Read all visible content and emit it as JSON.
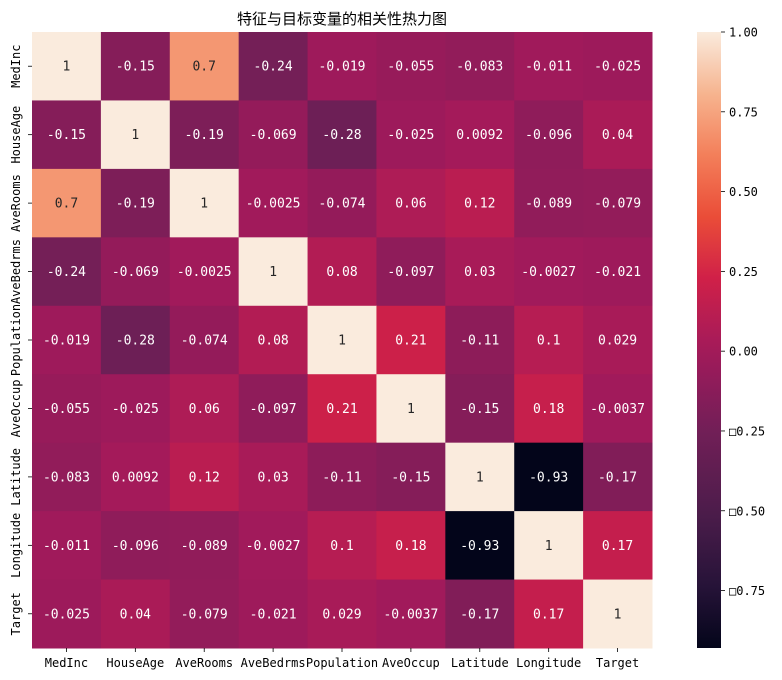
{
  "chart_data": {
    "type": "heatmap",
    "title": "特征与目标变量的相关性热力图",
    "row_labels": [
      "MedInc",
      "HouseAge",
      "AveRooms",
      "AveBedrms",
      "Population",
      "AveOccup",
      "Latitude",
      "Longitude",
      "Target"
    ],
    "col_labels": [
      "MedInc",
      "HouseAge",
      "AveRooms",
      "AveBedrms",
      "Population",
      "AveOccup",
      "Latitude",
      "Longitude",
      "Target"
    ],
    "values": [
      [
        1,
        -0.15,
        0.7,
        -0.24,
        -0.019,
        -0.055,
        -0.083,
        -0.011,
        -0.025
      ],
      [
        -0.15,
        1,
        -0.19,
        -0.069,
        -0.28,
        -0.025,
        0.0092,
        -0.096,
        0.04
      ],
      [
        0.7,
        -0.19,
        1,
        -0.0025,
        -0.074,
        0.06,
        0.12,
        -0.089,
        -0.079
      ],
      [
        -0.24,
        -0.069,
        -0.0025,
        1,
        0.08,
        -0.097,
        0.03,
        -0.0027,
        -0.021
      ],
      [
        -0.019,
        -0.28,
        -0.074,
        0.08,
        1,
        0.21,
        -0.11,
        0.1,
        0.029
      ],
      [
        -0.055,
        -0.025,
        0.06,
        -0.097,
        0.21,
        1,
        -0.15,
        0.18,
        -0.0037
      ],
      [
        -0.083,
        0.0092,
        0.12,
        0.03,
        -0.11,
        -0.15,
        1,
        -0.93,
        -0.17
      ],
      [
        -0.011,
        -0.096,
        -0.089,
        -0.0027,
        0.1,
        0.18,
        -0.93,
        1,
        0.17
      ],
      [
        -0.025,
        0.04,
        -0.079,
        -0.021,
        0.029,
        -0.0037,
        -0.17,
        0.17,
        1
      ]
    ],
    "cell_text": [
      [
        "1",
        "-0.15",
        "0.7",
        "-0.24",
        "-0.019",
        "-0.055",
        "-0.083",
        "-0.011",
        "-0.025"
      ],
      [
        "-0.15",
        "1",
        "-0.19",
        "-0.069",
        "-0.28",
        "-0.025",
        "0.0092",
        "-0.096",
        "0.04"
      ],
      [
        "0.7",
        "-0.19",
        "1",
        "-0.0025",
        "-0.074",
        "0.06",
        "0.12",
        "-0.089",
        "-0.079"
      ],
      [
        "-0.24",
        "-0.069",
        "-0.0025",
        "1",
        "0.08",
        "-0.097",
        "0.03",
        "-0.0027",
        "-0.021"
      ],
      [
        "-0.019",
        "-0.28",
        "-0.074",
        "0.08",
        "1",
        "0.21",
        "-0.11",
        "0.1",
        "0.029"
      ],
      [
        "-0.055",
        "-0.025",
        "0.06",
        "-0.097",
        "0.21",
        "1",
        "-0.15",
        "0.18",
        "-0.0037"
      ],
      [
        "-0.083",
        "0.0092",
        "0.12",
        "0.03",
        "-0.11",
        "-0.15",
        "1",
        "-0.93",
        "-0.17"
      ],
      [
        "-0.011",
        "-0.096",
        "-0.089",
        "-0.0027",
        "0.1",
        "0.18",
        "-0.93",
        "1",
        "0.17"
      ],
      [
        "-0.025",
        "0.04",
        "-0.079",
        "-0.021",
        "0.029",
        "-0.0037",
        "-0.17",
        "0.17",
        "1"
      ]
    ],
    "colorbar": {
      "colormap": "rocket",
      "vmin": -0.93,
      "vmax": 1.0,
      "ticks": [
        1.0,
        0.75,
        0.5,
        0.25,
        0.0,
        -0.25,
        -0.5,
        -0.75
      ],
      "tick_labels": [
        "1.00",
        "0.75",
        "0.50",
        "0.25",
        "0.00",
        "□0.25",
        "□0.50",
        "□0.75"
      ]
    },
    "xlabel": "",
    "ylabel": "",
    "grid": false,
    "legend": "colorbar-right"
  }
}
